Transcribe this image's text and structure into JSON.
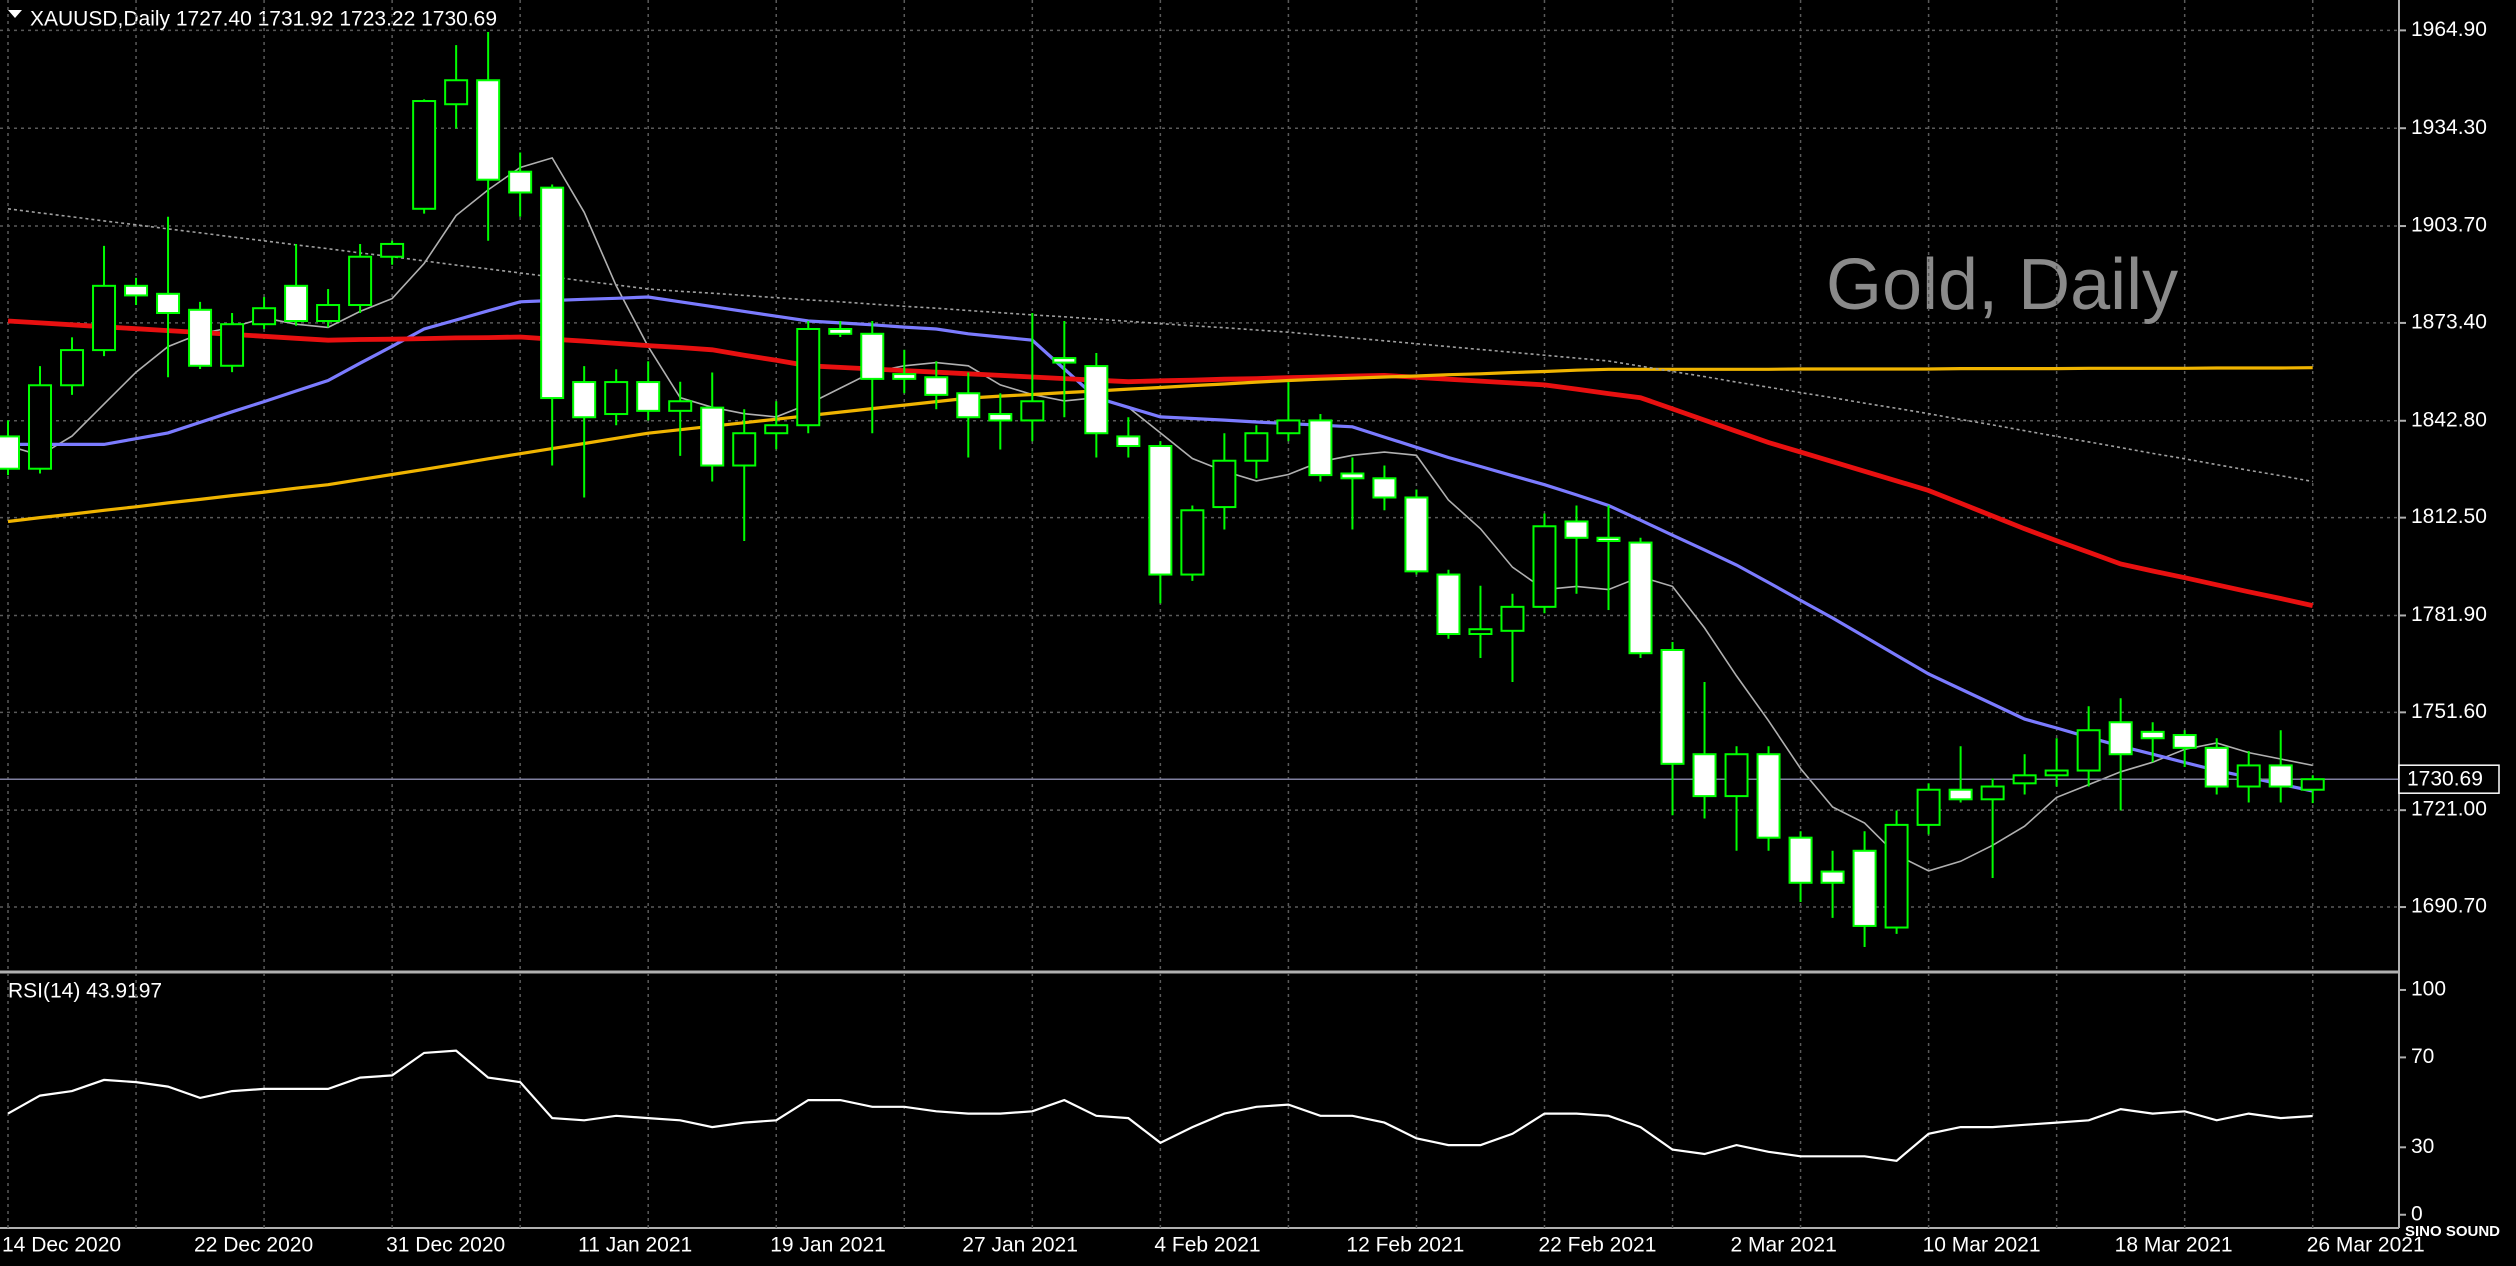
{
  "chart_data": [
    {
      "type": "candlestick",
      "title": "XAUUSD,Daily  1727.40 1731.92 1723.22 1730.69",
      "watermark": "Gold, Daily",
      "categories": [
        "14 Dec 2020",
        null,
        null,
        null,
        null,
        null,
        "22 Dec 2020",
        null,
        null,
        null,
        null,
        null,
        "31 Dec 2020",
        null,
        null,
        null,
        null,
        null,
        "11 Jan 2021",
        null,
        null,
        null,
        null,
        null,
        "19 Jan 2021",
        null,
        null,
        null,
        null,
        null,
        "27 Jan 2021",
        null,
        null,
        null,
        null,
        null,
        "4 Feb 2021",
        null,
        null,
        null,
        null,
        null,
        "12 Feb 2021",
        null,
        null,
        null,
        null,
        null,
        "22 Feb 2021",
        null,
        null,
        null,
        null,
        null,
        "2 Mar 2021",
        null,
        null,
        null,
        null,
        null,
        "10 Mar 2021",
        null,
        null,
        null,
        null,
        null,
        "18 Mar 2021",
        null,
        null,
        null,
        null,
        null,
        "26 Mar 2021"
      ],
      "open": [
        1837.9,
        1827.8,
        1853.9,
        1864.9,
        1885.0,
        1882.5,
        1877.5,
        1860.0,
        1873.0,
        1885.0,
        1874.0,
        1879.0,
        1894.1,
        1909.1,
        1941.8,
        1949.3,
        1920.7,
        1915.7,
        1854.9,
        1844.9,
        1854.9,
        1845.9,
        1846.9,
        1828.8,
        1838.9,
        1841.4,
        1871.5,
        1870.0,
        1857.4,
        1856.4,
        1851.4,
        1844.9,
        1842.9,
        1862.4,
        1859.9,
        1837.9,
        1834.9,
        1794.7,
        1815.8,
        1830.3,
        1838.9,
        1842.9,
        1826.3,
        1824.8,
        1818.8,
        1794.7,
        1776.1,
        1777.1,
        1784.6,
        1811.3,
        1806.2,
        1804.7,
        1771.1,
        1738.5,
        1725.4,
        1738.5,
        1712.4,
        1701.8,
        1708.3,
        1684.3,
        1716.4,
        1727.4,
        1724.4,
        1729.4,
        1731.9,
        1733.4,
        1748.5,
        1745.5,
        1744.5,
        1740.5,
        1728.4,
        1735.0,
        1727.4
      ],
      "high": [
        1842.9,
        1859.9,
        1868.9,
        1897.5,
        1887.5,
        1906.6,
        1880.0,
        1876.5,
        1881.5,
        1898.1,
        1884.0,
        1898.1,
        1899.1,
        1943.3,
        1960.3,
        1964.4,
        1926.7,
        1916.7,
        1859.9,
        1858.9,
        1861.4,
        1855.0,
        1857.9,
        1846.4,
        1848.9,
        1874.0,
        1874.0,
        1874.0,
        1865.0,
        1861.4,
        1857.9,
        1851.4,
        1876.5,
        1874.0,
        1864.0,
        1843.9,
        1836.4,
        1816.3,
        1838.9,
        1841.4,
        1854.9,
        1844.9,
        1831.3,
        1828.8,
        1821.3,
        1796.2,
        1791.2,
        1788.7,
        1813.8,
        1816.3,
        1816.3,
        1806.2,
        1773.6,
        1761.1,
        1741.0,
        1741.0,
        1714.4,
        1708.3,
        1714.4,
        1720.9,
        1729.4,
        1741.0,
        1730.9,
        1738.5,
        1743.5,
        1753.5,
        1756.0,
        1748.5,
        1746.0,
        1743.5,
        1739.5,
        1746.0,
        1731.92
      ],
      "low": [
        1825.8,
        1826.3,
        1850.9,
        1863.0,
        1879.0,
        1856.4,
        1859.0,
        1858.0,
        1871.5,
        1872.5,
        1872.0,
        1876.5,
        1891.6,
        1907.6,
        1934.2,
        1899.1,
        1906.6,
        1828.8,
        1818.8,
        1841.4,
        1842.9,
        1831.8,
        1823.8,
        1805.2,
        1833.9,
        1838.9,
        1869.0,
        1838.9,
        1851.4,
        1846.4,
        1831.3,
        1833.8,
        1836.4,
        1843.9,
        1831.3,
        1831.3,
        1785.7,
        1792.7,
        1808.8,
        1824.8,
        1836.4,
        1823.8,
        1808.8,
        1814.8,
        1794.7,
        1774.6,
        1768.6,
        1761.1,
        1782.6,
        1788.7,
        1783.6,
        1768.6,
        1719.4,
        1718.4,
        1708.3,
        1708.3,
        1692.3,
        1687.3,
        1678.2,
        1682.3,
        1713.4,
        1723.4,
        1699.8,
        1725.9,
        1728.4,
        1728.4,
        1720.9,
        1736.0,
        1734.5,
        1725.9,
        1723.4,
        1723.4,
        1723.22
      ],
      "close": [
        1827.8,
        1853.9,
        1864.9,
        1885.0,
        1882.0,
        1876.5,
        1860.0,
        1873.0,
        1878.0,
        1874.0,
        1879.0,
        1894.1,
        1898.1,
        1942.8,
        1949.3,
        1918.2,
        1914.2,
        1849.9,
        1843.9,
        1854.9,
        1845.9,
        1848.9,
        1828.8,
        1838.9,
        1841.4,
        1871.5,
        1870.0,
        1855.9,
        1855.9,
        1850.9,
        1843.9,
        1842.9,
        1848.9,
        1861.0,
        1838.9,
        1834.9,
        1794.7,
        1814.8,
        1830.3,
        1838.9,
        1842.9,
        1825.8,
        1824.8,
        1818.8,
        1795.7,
        1776.1,
        1777.6,
        1784.6,
        1809.8,
        1806.2,
        1805.2,
        1770.1,
        1735.5,
        1725.4,
        1738.5,
        1712.4,
        1698.3,
        1698.3,
        1684.8,
        1716.4,
        1727.4,
        1724.4,
        1728.4,
        1731.9,
        1733.4,
        1746.0,
        1738.5,
        1743.5,
        1740.5,
        1728.4,
        1735.0,
        1728.4,
        1730.69
      ],
      "up_color": "#000000",
      "down_color": "#ffffff",
      "wick_color": "#00ff00",
      "moving_averages": [
        {
          "color": "#b0b0b0",
          "width": 1,
          "dashed": false,
          "values": [
            1835,
            1832,
            1838,
            1848,
            1858,
            1866,
            1870,
            1872,
            1875,
            1873,
            1872,
            1877,
            1881,
            1892,
            1907,
            1915,
            1922,
            1925,
            1908,
            1885,
            1866,
            1850,
            1847,
            1845,
            1844,
            1848,
            1853,
            1858,
            1860,
            1861,
            1860,
            1854,
            1851,
            1849,
            1850,
            1847,
            1839,
            1831,
            1827,
            1824,
            1826,
            1830,
            1832,
            1833,
            1832,
            1818,
            1809,
            1797,
            1790,
            1791,
            1790,
            1794,
            1791,
            1778,
            1763,
            1749,
            1734,
            1722,
            1717,
            1707,
            1702,
            1705,
            1710,
            1716,
            1725,
            1729,
            1733,
            1736,
            1740,
            1742,
            1739,
            1737,
            1735
          ]
        },
        {
          "color": "#7b7bff",
          "width": 2,
          "dashed": false,
          "values": [
            1835.4,
            1835.4,
            1835.4,
            1835.4,
            1837.2,
            1839,
            1842.3,
            1845.6,
            1848.8,
            1852.1,
            1855.4,
            1860.8,
            1866.1,
            1871.5,
            1874.3,
            1877.2,
            1880,
            1880.4,
            1880.8,
            1881.1,
            1881.5,
            1880,
            1878.5,
            1877,
            1875.5,
            1874,
            1873.4,
            1872.8,
            1872.1,
            1871.5,
            1870,
            1869,
            1868,
            1859,
            1850,
            1847,
            1844,
            1843.5,
            1843,
            1842.4,
            1841.9,
            1841.4,
            1840.9,
            1837.7,
            1834.5,
            1831.3,
            1828.5,
            1825.6,
            1822.8,
            1819.6,
            1816.3,
            1811.7,
            1807,
            1802.4,
            1797.7,
            1792.2,
            1786.6,
            1781.1,
            1775.3,
            1769.4,
            1763.6,
            1758.9,
            1754.2,
            1749.5,
            1746.7,
            1743.8,
            1741,
            1738.5,
            1735.9,
            1733.4,
            1731.3,
            1729.1,
            1727
          ]
        },
        {
          "color": "#e81010",
          "width": 3,
          "dashed": false,
          "values": [
            1874,
            1873.4,
            1872.8,
            1872.2,
            1871.6,
            1871,
            1870.4,
            1869.8,
            1869.2,
            1868.6,
            1868,
            1868.2,
            1868.3,
            1868.5,
            1868.7,
            1868.8,
            1869,
            1868.3,
            1867.7,
            1867,
            1866.3,
            1865.7,
            1865,
            1863.3,
            1861.7,
            1860,
            1859.5,
            1859,
            1858.5,
            1858,
            1857.5,
            1857,
            1856.5,
            1856,
            1855.5,
            1855,
            1855.3,
            1855.5,
            1855.8,
            1856,
            1856.3,
            1856.5,
            1856.8,
            1857,
            1856.4,
            1855.8,
            1855.2,
            1854.6,
            1854,
            1852.7,
            1851.3,
            1850,
            1846.5,
            1843,
            1839.5,
            1836,
            1833,
            1830,
            1827,
            1824,
            1821,
            1817,
            1813,
            1809,
            1805.3,
            1801.7,
            1798,
            1795.8,
            1793.7,
            1791.5,
            1789.3,
            1787.2,
            1785
          ]
        },
        {
          "color": "#f0b400",
          "width": 2,
          "dashed": false,
          "values": [
            1811.3,
            1812.5,
            1813.6,
            1814.8,
            1815.9,
            1817.1,
            1818.2,
            1819.4,
            1820.5,
            1821.7,
            1822.8,
            1824.4,
            1826,
            1827.6,
            1829.2,
            1830.9,
            1832.5,
            1834.1,
            1835.7,
            1837.3,
            1838.9,
            1840,
            1841.1,
            1842.2,
            1843.3,
            1844.4,
            1845.5,
            1846.6,
            1847.7,
            1848.8,
            1849.9,
            1850.5,
            1851,
            1851.6,
            1852.1,
            1852.7,
            1853.2,
            1853.8,
            1854.3,
            1854.9,
            1855.4,
            1855.8,
            1856.1,
            1856.5,
            1856.8,
            1857.2,
            1857.5,
            1857.9,
            1858.2,
            1858.6,
            1858.9,
            1858.9,
            1858.9,
            1858.9,
            1858.9,
            1858.9,
            1859,
            1859,
            1859,
            1859,
            1859,
            1859.1,
            1859.1,
            1859.1,
            1859.1,
            1859.2,
            1859.2,
            1859.2,
            1859.2,
            1859.3,
            1859.3,
            1859.3,
            1859.4
          ]
        },
        {
          "color": "#a0a0a0",
          "width": 1,
          "dashed": true,
          "values": [
            1909.1,
            1907.8,
            1906.6,
            1905.3,
            1904.1,
            1902.8,
            1901.6,
            1900.3,
            1899.1,
            1897.8,
            1896.6,
            1895.3,
            1894.1,
            1892.8,
            1891.5,
            1890.3,
            1889,
            1887.8,
            1886.5,
            1885.3,
            1884,
            1883.3,
            1882.7,
            1882,
            1881.3,
            1880.6,
            1880,
            1879.3,
            1878.6,
            1878,
            1877.3,
            1876.6,
            1875.9,
            1875.3,
            1874.6,
            1873.9,
            1873.2,
            1872.5,
            1871.9,
            1871.2,
            1870.5,
            1869.6,
            1868.7,
            1867.8,
            1866.9,
            1866,
            1865.1,
            1864.2,
            1863.3,
            1862.4,
            1861.5,
            1859.9,
            1858.2,
            1856.6,
            1854.9,
            1853.3,
            1851.6,
            1850,
            1848.3,
            1846.7,
            1845,
            1843.2,
            1841.5,
            1839.7,
            1837.9,
            1836.2,
            1834.4,
            1832.6,
            1830.9,
            1829.1,
            1827.3,
            1825.6,
            1823.8
          ]
        }
      ],
      "last_price": {
        "value": 1730.69,
        "label": "1730.69"
      },
      "ylim": [
        1670.7,
        1974.4
      ],
      "yticks": [
        {
          "value": 1964.9,
          "label": "1964.90"
        },
        {
          "value": 1934.3,
          "label": "1934.30"
        },
        {
          "value": 1903.7,
          "label": "1903.70"
        },
        {
          "value": 1873.4,
          "label": "1873.40"
        },
        {
          "value": 1842.8,
          "label": "1842.80"
        },
        {
          "value": 1812.5,
          "label": "1812.50"
        },
        {
          "value": 1781.9,
          "label": "1781.90"
        },
        {
          "value": 1751.6,
          "label": "1751.60"
        },
        {
          "value": 1721.0,
          "label": "1721.00"
        },
        {
          "value": 1690.7,
          "label": "1690.70"
        }
      ],
      "grid": true
    },
    {
      "type": "line",
      "title": "RSI(14) 43.9197",
      "color": "#ffffff",
      "values": [
        45,
        53,
        55,
        60,
        59,
        57,
        52,
        55,
        56,
        56,
        56,
        61,
        62,
        72,
        73,
        61,
        59,
        43,
        42,
        44,
        43,
        42,
        39,
        41,
        42,
        51,
        51,
        48,
        48,
        46,
        45,
        45,
        46,
        51,
        44,
        43,
        32,
        39,
        45,
        48,
        49,
        44,
        44,
        41,
        34,
        31,
        31,
        36,
        45,
        45,
        44,
        39,
        29,
        27,
        31,
        28,
        26,
        26,
        26,
        24,
        36,
        39,
        39,
        40,
        41,
        42,
        47,
        45,
        46,
        42,
        45,
        43,
        43.9197
      ],
      "ylim": [
        -5.9,
        107.1
      ],
      "yticks": [
        100,
        70,
        30,
        0
      ]
    }
  ],
  "logo_text": "SINO SOUND"
}
